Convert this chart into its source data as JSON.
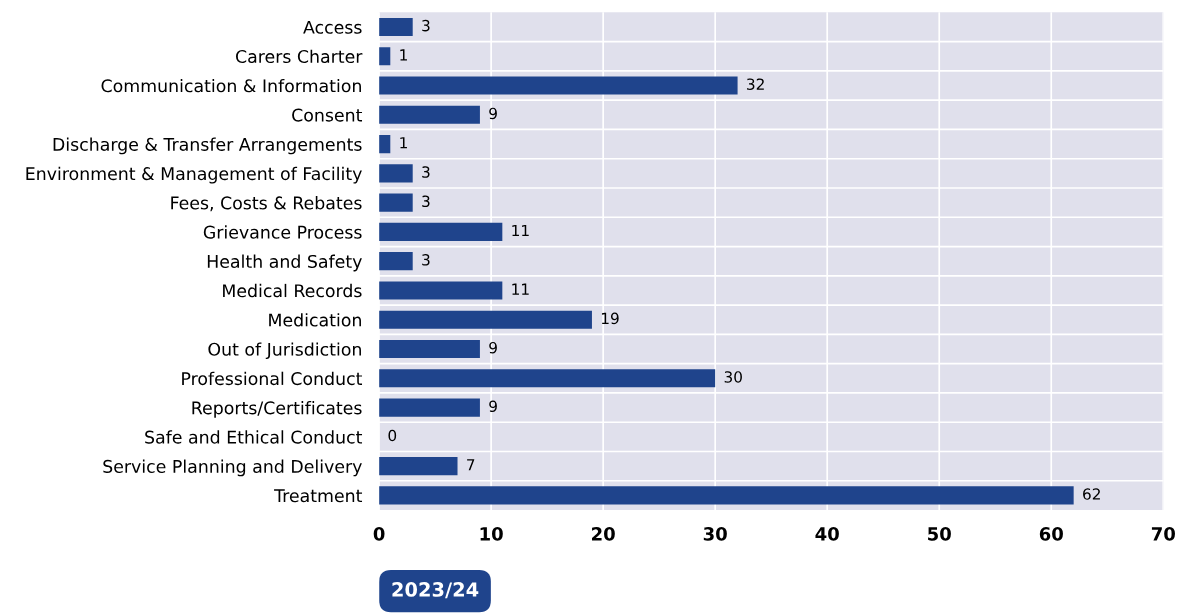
{
  "chart_data": {
    "type": "bar",
    "orientation": "horizontal",
    "categories": [
      "Access",
      "Carers Charter",
      "Communication & Information",
      "Consent",
      "Discharge & Transfer Arrangements",
      "Environment & Management of Facility",
      "Fees, Costs & Rebates",
      "Grievance Process",
      "Health and Safety",
      "Medical Records",
      "Medication",
      "Out of Jurisdiction",
      "Professional Conduct",
      "Reports/Certificates",
      "Safe and Ethical Conduct",
      "Service Planning and Delivery",
      "Treatment"
    ],
    "series": [
      {
        "name": "2023/24",
        "color": "#1f448c",
        "values": [
          3,
          1,
          32,
          9,
          1,
          3,
          3,
          11,
          3,
          11,
          19,
          9,
          30,
          9,
          0,
          7,
          62
        ]
      }
    ],
    "xlim": [
      0,
      70
    ],
    "xticks": [
      0,
      10,
      20,
      30,
      40,
      50,
      60,
      70
    ],
    "data_labels": true,
    "grid": true,
    "legend": "bottom left"
  }
}
